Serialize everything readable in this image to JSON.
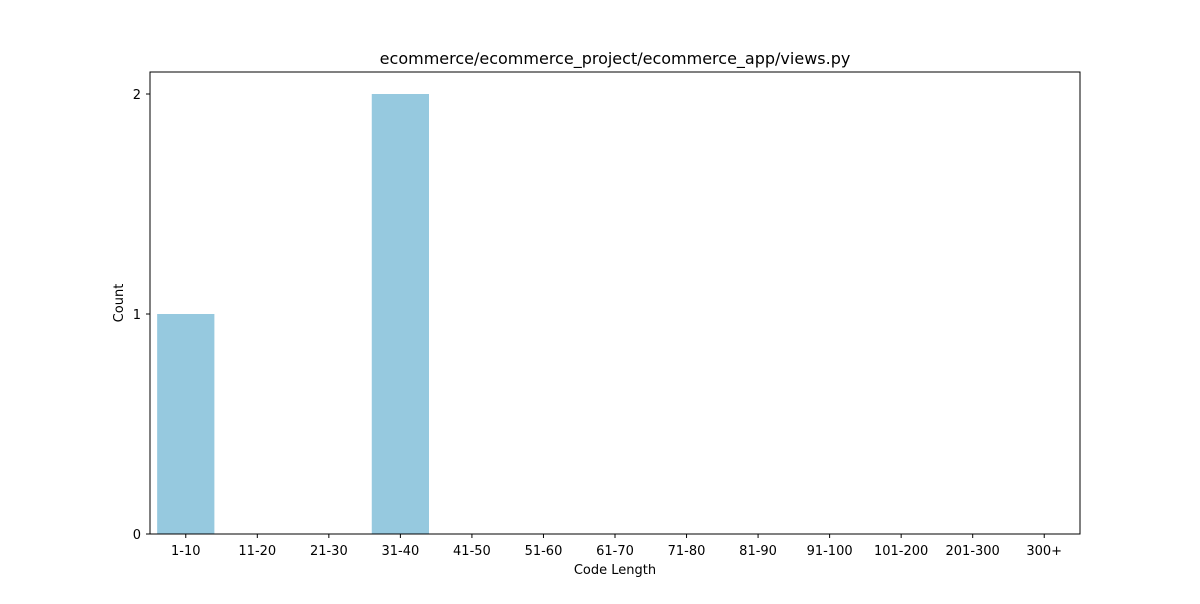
{
  "chart_data": {
    "type": "bar",
    "title": "ecommerce/ecommerce_project/ecommerce_app/views.py",
    "xlabel": "Code Length",
    "ylabel": "Count",
    "categories": [
      "1-10",
      "11-20",
      "21-30",
      "31-40",
      "41-50",
      "51-60",
      "61-70",
      "71-80",
      "81-90",
      "91-100",
      "101-200",
      "201-300",
      "300+"
    ],
    "values": [
      1,
      0,
      0,
      2,
      0,
      0,
      0,
      0,
      0,
      0,
      0,
      0,
      0
    ],
    "ylim": [
      0,
      2.1
    ],
    "yticks": [
      "0",
      "1",
      "2"
    ],
    "bar_color": "#96c9df",
    "grid": false,
    "legend": "none"
  }
}
